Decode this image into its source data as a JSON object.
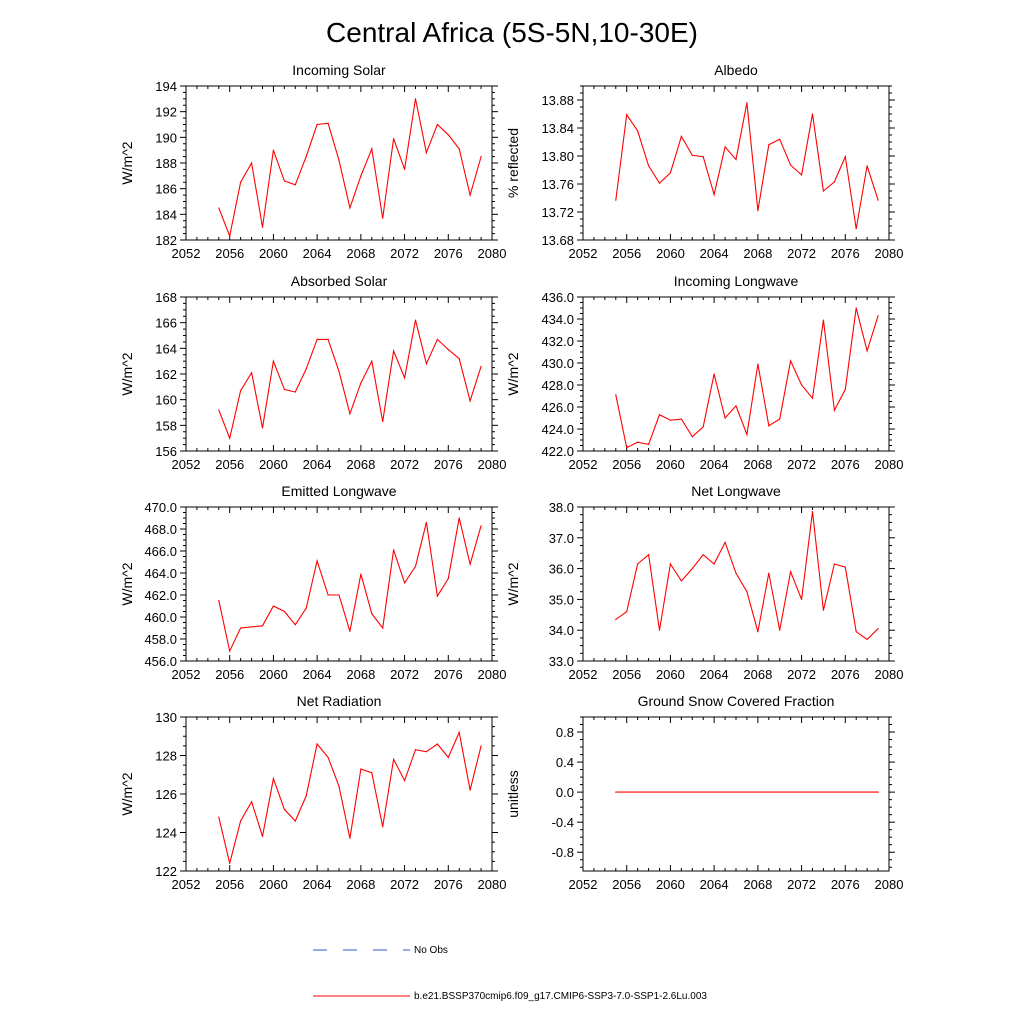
{
  "figure": {
    "title": "Central Africa (5S-5N,10-30E)"
  },
  "legend": {
    "entries": [
      {
        "label": "No Obs",
        "color": "#3355cc",
        "style": "dashed"
      },
      {
        "label": "b.e21.BSSP370cmip6.f09_g17.CMIP6-SSP3-7.0-SSP1-2.6Lu.003",
        "color": "#ff0000",
        "style": "solid"
      }
    ]
  },
  "chart_data": [
    {
      "type": "line",
      "title": "Incoming Solar",
      "ylabel": "W/m^2",
      "xlim": [
        2052,
        2080
      ],
      "ylim": [
        182,
        194
      ],
      "xticks": [
        "2052",
        "2056",
        "2060",
        "2064",
        "2068",
        "2072",
        "2076",
        "2080"
      ],
      "yticks": [
        "182",
        "184",
        "186",
        "188",
        "190",
        "192",
        "194"
      ],
      "line_color": "#ff0000",
      "grid": false,
      "x": [
        2055,
        2056,
        2057,
        2058,
        2059,
        2060,
        2061,
        2062,
        2063,
        2064,
        2065,
        2066,
        2067,
        2068,
        2069,
        2070,
        2071,
        2072,
        2073,
        2074,
        2075,
        2076,
        2077,
        2078,
        2079
      ],
      "y": [
        184.5,
        182.3,
        186.5,
        188.0,
        183.0,
        189.0,
        186.6,
        186.3,
        188.5,
        191.0,
        191.1,
        188.2,
        184.5,
        187.0,
        189.1,
        183.7,
        189.9,
        187.5,
        193.0,
        188.8,
        191.0,
        190.2,
        189.1,
        185.5,
        188.5
      ]
    },
    {
      "type": "line",
      "title": "Albedo",
      "ylabel": "% reflected",
      "xlim": [
        2052,
        2080
      ],
      "ylim": [
        13.68,
        13.9
      ],
      "xticks": [
        "2052",
        "2056",
        "2060",
        "2064",
        "2068",
        "2072",
        "2076",
        "2080"
      ],
      "yticks": [
        "13.68",
        "13.72",
        "13.76",
        "13.80",
        "13.84",
        "13.88"
      ],
      "line_color": "#ff0000",
      "grid": false,
      "x": [
        2055,
        2056,
        2057,
        2058,
        2059,
        2060,
        2061,
        2062,
        2063,
        2064,
        2065,
        2066,
        2067,
        2068,
        2069,
        2070,
        2071,
        2072,
        2073,
        2074,
        2075,
        2076,
        2077,
        2078,
        2079
      ],
      "y": [
        13.737,
        13.859,
        13.836,
        13.786,
        13.761,
        13.776,
        13.828,
        13.801,
        13.799,
        13.745,
        13.813,
        13.795,
        13.876,
        13.722,
        13.816,
        13.824,
        13.787,
        13.773,
        13.86,
        13.75,
        13.763,
        13.799,
        13.696,
        13.786,
        13.737
      ]
    },
    {
      "type": "line",
      "title": "Absorbed Solar",
      "ylabel": "W/m^2",
      "xlim": [
        2052,
        2080
      ],
      "ylim": [
        156,
        168
      ],
      "xticks": [
        "2052",
        "2056",
        "2060",
        "2064",
        "2068",
        "2072",
        "2076",
        "2080"
      ],
      "yticks": [
        "156",
        "158",
        "160",
        "162",
        "164",
        "166",
        "168"
      ],
      "line_color": "#ff0000",
      "grid": false,
      "x": [
        2055,
        2056,
        2057,
        2058,
        2059,
        2060,
        2061,
        2062,
        2063,
        2064,
        2065,
        2066,
        2067,
        2068,
        2069,
        2070,
        2071,
        2072,
        2073,
        2074,
        2075,
        2076,
        2077,
        2078,
        2079
      ],
      "y": [
        159.2,
        157.0,
        160.7,
        162.1,
        157.8,
        163.0,
        160.8,
        160.6,
        162.4,
        164.7,
        164.7,
        162.2,
        158.9,
        161.3,
        163.0,
        158.3,
        163.8,
        161.7,
        166.2,
        162.8,
        164.7,
        163.9,
        163.2,
        159.9,
        162.6
      ]
    },
    {
      "type": "line",
      "title": "Incoming Longwave",
      "ylabel": "W/m^2",
      "xlim": [
        2052,
        2080
      ],
      "ylim": [
        422.0,
        436.0
      ],
      "xticks": [
        "2052",
        "2056",
        "2060",
        "2064",
        "2068",
        "2072",
        "2076",
        "2080"
      ],
      "yticks": [
        "422.0",
        "424.0",
        "426.0",
        "428.0",
        "430.0",
        "432.0",
        "434.0",
        "436.0"
      ],
      "line_color": "#ff0000",
      "grid": false,
      "x": [
        2055,
        2056,
        2057,
        2058,
        2059,
        2060,
        2061,
        2062,
        2063,
        2064,
        2065,
        2066,
        2067,
        2068,
        2069,
        2070,
        2071,
        2072,
        2073,
        2074,
        2075,
        2076,
        2077,
        2078,
        2079
      ],
      "y": [
        427.1,
        422.3,
        422.8,
        422.6,
        425.3,
        424.8,
        424.9,
        423.3,
        424.2,
        429.0,
        425.0,
        426.1,
        423.5,
        429.9,
        424.3,
        424.9,
        430.2,
        428.0,
        426.8,
        433.9,
        425.7,
        427.6,
        435.0,
        431.1,
        434.3
      ]
    },
    {
      "type": "line",
      "title": "Emitted Longwave",
      "ylabel": "W/m^2",
      "xlim": [
        2052,
        2080
      ],
      "ylim": [
        456.0,
        470.0
      ],
      "xticks": [
        "2052",
        "2056",
        "2060",
        "2064",
        "2068",
        "2072",
        "2076",
        "2080"
      ],
      "yticks": [
        "456.0",
        "458.0",
        "460.0",
        "462.0",
        "464.0",
        "466.0",
        "468.0",
        "470.0"
      ],
      "line_color": "#ff0000",
      "grid": false,
      "x": [
        2055,
        2056,
        2057,
        2058,
        2059,
        2060,
        2061,
        2062,
        2063,
        2064,
        2065,
        2066,
        2067,
        2068,
        2069,
        2070,
        2071,
        2072,
        2073,
        2074,
        2075,
        2076,
        2077,
        2078,
        2079
      ],
      "y": [
        461.5,
        456.9,
        459.0,
        459.1,
        459.2,
        461.0,
        460.5,
        459.3,
        460.8,
        465.1,
        462.0,
        462.0,
        458.7,
        463.9,
        460.3,
        459.0,
        466.1,
        463.1,
        464.6,
        468.6,
        461.9,
        463.5,
        469.0,
        464.8,
        468.3
      ]
    },
    {
      "type": "line",
      "title": "Net Longwave",
      "ylabel": "W/m^2",
      "xlim": [
        2052,
        2080
      ],
      "ylim": [
        33.0,
        38.0
      ],
      "xticks": [
        "2052",
        "2056",
        "2060",
        "2064",
        "2068",
        "2072",
        "2076",
        "2080"
      ],
      "yticks": [
        "33.0",
        "34.0",
        "35.0",
        "36.0",
        "37.0",
        "38.0"
      ],
      "line_color": "#ff0000",
      "grid": false,
      "x": [
        2055,
        2056,
        2057,
        2058,
        2059,
        2060,
        2061,
        2062,
        2063,
        2064,
        2065,
        2066,
        2067,
        2068,
        2069,
        2070,
        2071,
        2072,
        2073,
        2074,
        2075,
        2076,
        2077,
        2078,
        2079
      ],
      "y": [
        34.35,
        34.6,
        36.15,
        36.45,
        34.0,
        36.15,
        35.6,
        36.0,
        36.45,
        36.15,
        36.85,
        35.85,
        35.25,
        33.95,
        35.85,
        34.0,
        35.9,
        35.0,
        37.85,
        34.65,
        36.15,
        36.05,
        33.95,
        33.7,
        34.05
      ]
    },
    {
      "type": "line",
      "title": "Net Radiation",
      "ylabel": "W/m^2",
      "xlim": [
        2052,
        2080
      ],
      "ylim": [
        122,
        130
      ],
      "xticks": [
        "2052",
        "2056",
        "2060",
        "2064",
        "2068",
        "2072",
        "2076",
        "2080"
      ],
      "yticks": [
        "122",
        "124",
        "126",
        "128",
        "130"
      ],
      "line_color": "#ff0000",
      "grid": false,
      "x": [
        2055,
        2056,
        2057,
        2058,
        2059,
        2060,
        2061,
        2062,
        2063,
        2064,
        2065,
        2066,
        2067,
        2068,
        2069,
        2070,
        2071,
        2072,
        2073,
        2074,
        2075,
        2076,
        2077,
        2078,
        2079
      ],
      "y": [
        124.8,
        122.4,
        124.6,
        125.6,
        123.8,
        126.8,
        125.2,
        124.6,
        125.9,
        128.6,
        127.9,
        126.4,
        123.7,
        127.3,
        127.1,
        124.3,
        127.8,
        126.7,
        128.3,
        128.2,
        128.6,
        127.9,
        129.2,
        126.2,
        128.5
      ]
    },
    {
      "type": "line",
      "title": "Ground Snow Covered Fraction",
      "ylabel": "unitless",
      "xlim": [
        2052,
        2080
      ],
      "ylim": [
        -1.05,
        1.0
      ],
      "xticks": [
        "2052",
        "2056",
        "2060",
        "2064",
        "2068",
        "2072",
        "2076",
        "2080"
      ],
      "yticks": [
        "-0.8",
        "-0.4",
        "0.0",
        "0.4",
        "0.8"
      ],
      "line_color": "#ff0000",
      "grid": false,
      "x": [
        2055,
        2079
      ],
      "y": [
        0.0,
        0.0
      ]
    }
  ]
}
